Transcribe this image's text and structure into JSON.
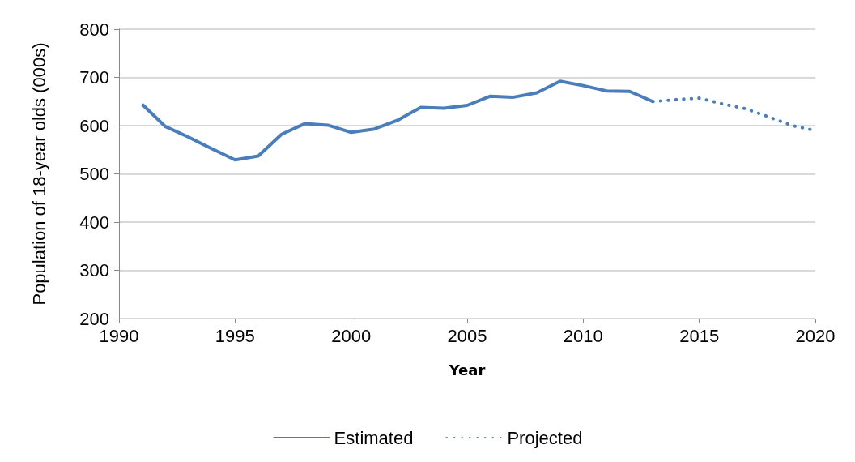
{
  "chart_data": {
    "type": "line",
    "xlabel": "Year",
    "ylabel": "Population of 18-year olds (000s)",
    "xlim": [
      1990,
      2020
    ],
    "xticks": [
      1990,
      1995,
      2000,
      2005,
      2010,
      2015,
      2020
    ],
    "ylim": [
      200,
      800
    ],
    "yticks": [
      200,
      300,
      400,
      500,
      600,
      700,
      800
    ],
    "grid": "y",
    "legend": "bottom",
    "marker": "none",
    "series": [
      {
        "name": "Estimated",
        "color": "#4a7ebb",
        "line_style": "solid",
        "x": [
          1991,
          1992,
          1993,
          1994,
          1995,
          1996,
          1997,
          1998,
          1999,
          2000,
          2001,
          2002,
          2003,
          2004,
          2005,
          2006,
          2007,
          2008,
          2009,
          2010,
          2011,
          2012,
          2013
        ],
        "values": [
          644,
          598,
          576,
          552,
          529,
          537,
          582,
          604,
          601,
          586,
          593,
          611,
          638,
          636,
          642,
          661,
          659,
          668,
          692,
          683,
          672,
          671,
          650
        ]
      },
      {
        "name": "Projected",
        "color": "#4a7ebb",
        "line_style": "dotted",
        "x": [
          2013,
          2014,
          2015,
          2016,
          2017,
          2018,
          2019,
          2020
        ],
        "values": [
          650,
          654,
          657,
          645,
          635,
          618,
          600,
          590
        ]
      }
    ]
  }
}
